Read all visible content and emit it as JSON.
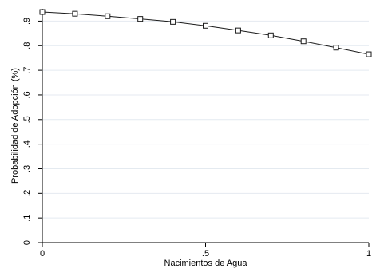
{
  "chart_data": {
    "type": "line",
    "title": "",
    "xlabel": "Nacimientos de Agua",
    "ylabel": "Probabilidad de Adopción (%)",
    "xlim": [
      0,
      1
    ],
    "ylim": [
      0,
      0.95
    ],
    "x_ticks": [
      0,
      0.5,
      1
    ],
    "x_tick_labels": [
      "0",
      ".5",
      "1"
    ],
    "y_ticks": [
      0,
      0.1,
      0.2,
      0.3,
      0.4,
      0.5,
      0.6,
      0.7,
      0.8,
      0.9
    ],
    "y_tick_labels": [
      "0",
      ".1",
      ".2",
      ".3",
      ".4",
      ".5",
      ".6",
      ".7",
      ".8",
      ".9"
    ],
    "grid": "horizontal",
    "marker": "hollow-square",
    "series": [
      {
        "x": [
          0,
          0.1,
          0.2,
          0.3,
          0.4,
          0.5,
          0.6,
          0.7,
          0.8,
          0.9,
          1.0
        ],
        "values": [
          0.937,
          0.93,
          0.92,
          0.909,
          0.897,
          0.881,
          0.862,
          0.842,
          0.818,
          0.792,
          0.765
        ]
      }
    ],
    "colors": {
      "line": "#1a1a1a",
      "grid": "#e4eaf0",
      "axis": "#000000"
    }
  }
}
